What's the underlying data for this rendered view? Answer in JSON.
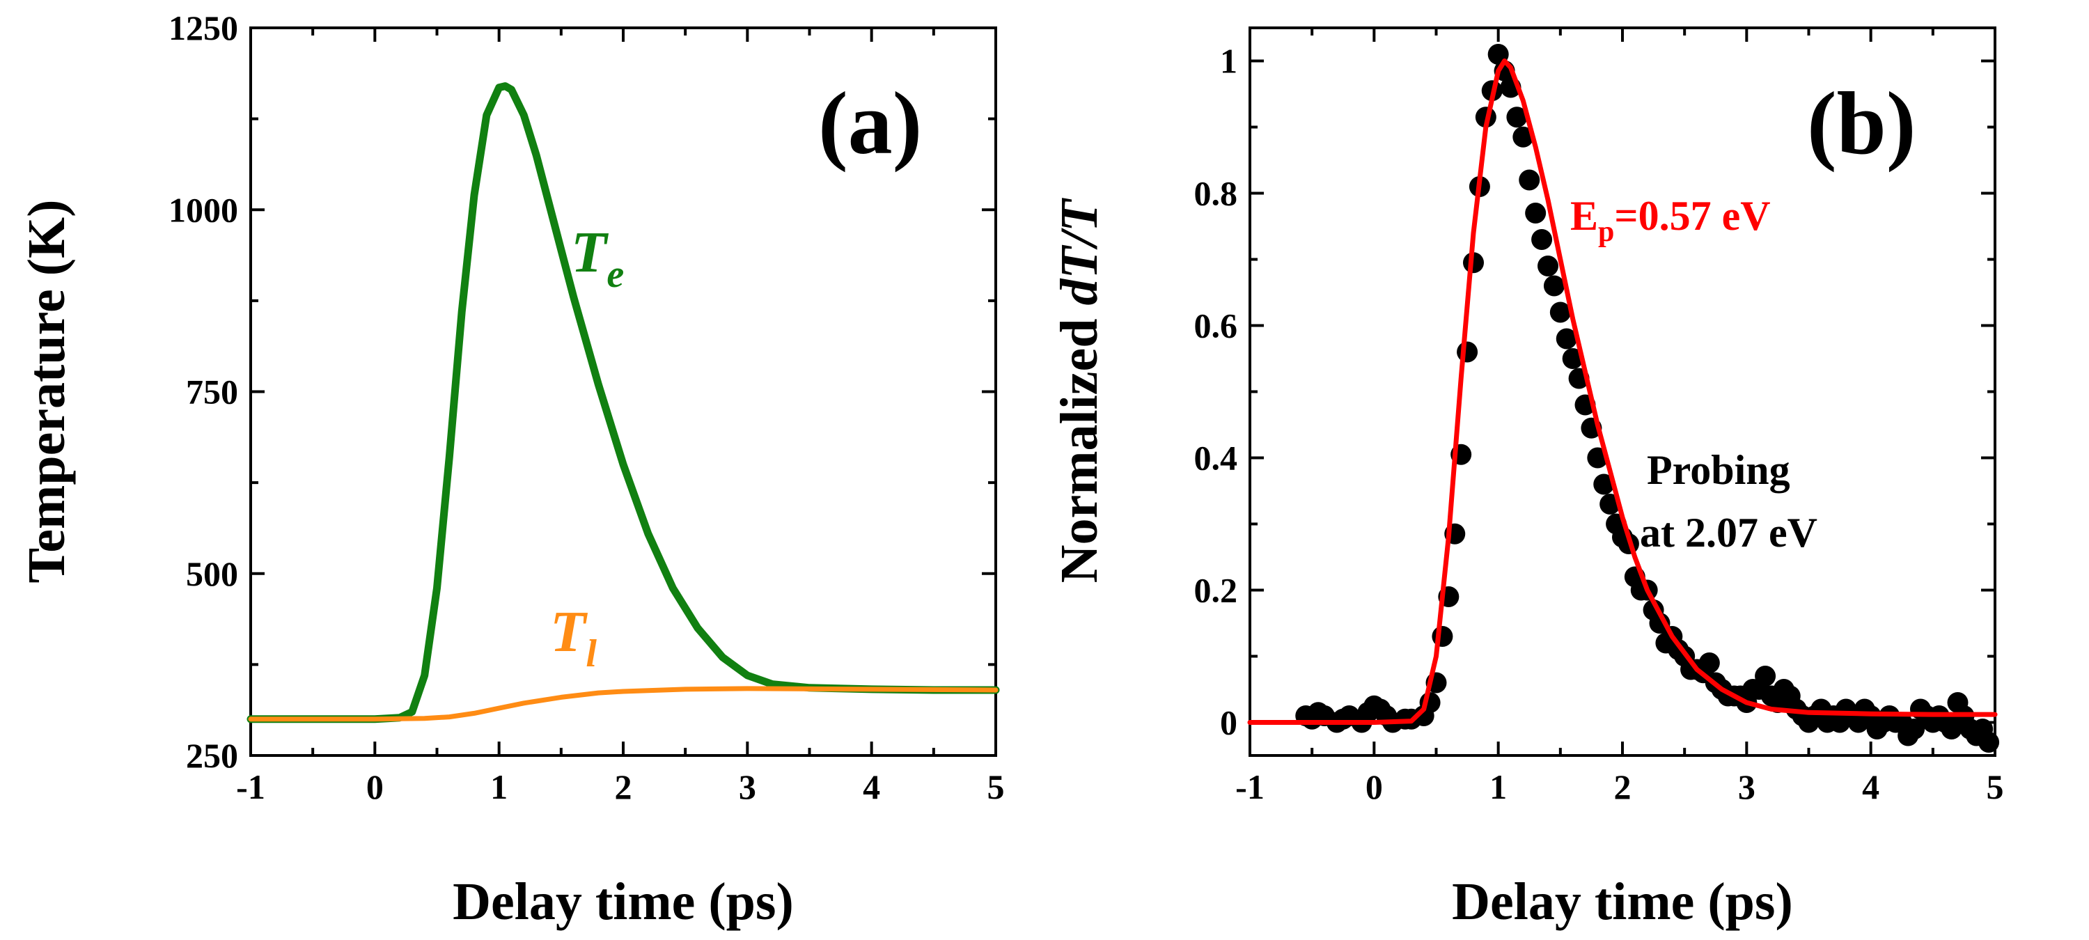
{
  "figure": {
    "panel_count": 2
  },
  "chart_data": [
    {
      "type": "line",
      "panel_label": "(a)",
      "xlabel": "Delay time (ps)",
      "ylabel": "Temperature (K)",
      "xlim": [
        -1,
        5
      ],
      "ylim": [
        250,
        1250
      ],
      "x_ticks": [
        -1,
        0,
        1,
        2,
        3,
        4,
        5
      ],
      "y_ticks": [
        250,
        500,
        750,
        1000,
        1250
      ],
      "x_tick_labels": [
        "-1",
        "0",
        "1",
        "2",
        "3",
        "4",
        "5"
      ],
      "y_tick_labels": [
        "250",
        "500",
        "750",
        "1000",
        "1250"
      ],
      "series": [
        {
          "name": "Te",
          "label_main": "T",
          "label_sub": "e",
          "color": "#118011",
          "x": [
            -1.0,
            0.0,
            0.2,
            0.3,
            0.4,
            0.5,
            0.6,
            0.7,
            0.8,
            0.9,
            1.0,
            1.05,
            1.1,
            1.2,
            1.3,
            1.4,
            1.5,
            1.6,
            1.8,
            2.0,
            2.2,
            2.4,
            2.6,
            2.8,
            3.0,
            3.2,
            3.5,
            4.0,
            4.5,
            5.0
          ],
          "y": [
            300,
            300,
            302,
            310,
            360,
            480,
            660,
            860,
            1020,
            1130,
            1168,
            1170,
            1165,
            1130,
            1075,
            1010,
            945,
            880,
            760,
            650,
            555,
            480,
            425,
            385,
            360,
            348,
            343,
            341,
            340,
            340
          ]
        },
        {
          "name": "Tl",
          "label_main": "T",
          "label_sub": "l",
          "color": "#ff8c14",
          "x": [
            -1.0,
            0.0,
            0.4,
            0.6,
            0.8,
            1.0,
            1.2,
            1.5,
            1.8,
            2.0,
            2.5,
            3.0,
            4.0,
            5.0
          ],
          "y": [
            300,
            300,
            301,
            303,
            308,
            315,
            322,
            330,
            336,
            338,
            341,
            342,
            341,
            340
          ]
        }
      ]
    },
    {
      "type": "scatter",
      "panel_label": "(b)",
      "xlabel_prefix": "Delay time (ps)",
      "ylabel_prefix": "Normalized ",
      "ylabel_italic": "dT/T",
      "xlim": [
        -1,
        5
      ],
      "ylim": [
        -0.05,
        1.05
      ],
      "x_ticks": [
        -1,
        0,
        1,
        2,
        3,
        4,
        5
      ],
      "y_ticks": [
        0,
        0.2,
        0.4,
        0.6,
        0.8,
        1
      ],
      "x_tick_labels": [
        "-1",
        "0",
        "1",
        "2",
        "3",
        "4",
        "5"
      ],
      "y_tick_labels": [
        "0",
        "0.2",
        "0.4",
        "0.6",
        "0.8",
        "1"
      ],
      "series": [
        {
          "name": "data",
          "color": "#000000",
          "x": [
            -0.55,
            -0.5,
            -0.45,
            -0.4,
            -0.3,
            -0.25,
            -0.2,
            -0.1,
            -0.05,
            0.0,
            0.05,
            0.1,
            0.15,
            0.25,
            0.3,
            0.4,
            0.45,
            0.5,
            0.55,
            0.6,
            0.65,
            0.7,
            0.75,
            0.8,
            0.85,
            0.9,
            0.95,
            1.0,
            1.05,
            1.1,
            1.15,
            1.2,
            1.25,
            1.3,
            1.35,
            1.4,
            1.45,
            1.5,
            1.55,
            1.6,
            1.65,
            1.7,
            1.75,
            1.8,
            1.85,
            1.9,
            1.95,
            2.0,
            2.05,
            2.1,
            2.15,
            2.2,
            2.25,
            2.3,
            2.35,
            2.4,
            2.45,
            2.5,
            2.55,
            2.6,
            2.65,
            2.7,
            2.75,
            2.8,
            2.85,
            2.9,
            2.95,
            3.0,
            3.05,
            3.1,
            3.15,
            3.2,
            3.25,
            3.3,
            3.35,
            3.4,
            3.45,
            3.5,
            3.55,
            3.6,
            3.65,
            3.7,
            3.75,
            3.8,
            3.85,
            3.9,
            3.95,
            4.0,
            4.05,
            4.1,
            4.15,
            4.2,
            4.25,
            4.3,
            4.35,
            4.4,
            4.45,
            4.5,
            4.55,
            4.6,
            4.65,
            4.7,
            4.75,
            4.8,
            4.85,
            4.9,
            4.95
          ],
          "y": [
            0.01,
            0.005,
            0.015,
            0.01,
            0.0,
            0.005,
            0.01,
            0.0,
            0.015,
            0.025,
            0.02,
            0.01,
            0.0,
            0.005,
            0.005,
            0.01,
            0.03,
            0.06,
            0.13,
            0.19,
            0.285,
            0.405,
            0.56,
            0.695,
            0.81,
            0.915,
            0.955,
            1.01,
            0.985,
            0.96,
            0.915,
            0.885,
            0.82,
            0.77,
            0.73,
            0.69,
            0.66,
            0.62,
            0.58,
            0.55,
            0.52,
            0.48,
            0.445,
            0.4,
            0.36,
            0.33,
            0.3,
            0.28,
            0.27,
            0.22,
            0.2,
            0.2,
            0.17,
            0.15,
            0.12,
            0.13,
            0.11,
            0.1,
            0.08,
            0.08,
            0.075,
            0.09,
            0.06,
            0.05,
            0.04,
            0.04,
            0.04,
            0.03,
            0.05,
            0.05,
            0.07,
            0.04,
            0.03,
            0.05,
            0.04,
            0.02,
            0.01,
            0.0,
            0.01,
            0.02,
            0.0,
            0.01,
            0.0,
            0.02,
            0.01,
            0.0,
            0.02,
            0.01,
            -0.01,
            0.0,
            0.01,
            0.0,
            0.0,
            -0.02,
            -0.01,
            0.02,
            0.01,
            0.0,
            0.01,
            0.0,
            -0.01,
            0.03,
            0.01,
            -0.01,
            -0.02,
            -0.01,
            -0.03
          ]
        },
        {
          "name": "fit",
          "color": "#ff0000",
          "x": [
            -1.0,
            0.0,
            0.3,
            0.4,
            0.5,
            0.6,
            0.7,
            0.8,
            0.9,
            1.0,
            1.05,
            1.1,
            1.2,
            1.3,
            1.4,
            1.5,
            1.6,
            1.7,
            1.8,
            1.9,
            2.0,
            2.1,
            2.2,
            2.4,
            2.6,
            2.8,
            3.0,
            3.2,
            3.5,
            4.0,
            4.5,
            5.0
          ],
          "y": [
            0.0,
            0.0,
            0.002,
            0.02,
            0.1,
            0.28,
            0.52,
            0.74,
            0.9,
            0.985,
            1.0,
            0.99,
            0.94,
            0.87,
            0.79,
            0.7,
            0.61,
            0.53,
            0.45,
            0.38,
            0.31,
            0.25,
            0.2,
            0.13,
            0.08,
            0.05,
            0.03,
            0.02,
            0.015,
            0.013,
            0.012,
            0.012
          ]
        }
      ],
      "annotations": {
        "ep_main": "E",
        "ep_sub": "p",
        "ep_rest": "=0.57 eV",
        "ep_color": "#ff0000",
        "probe_line1": "Probing",
        "probe_line2": "at 2.07 eV"
      }
    }
  ]
}
